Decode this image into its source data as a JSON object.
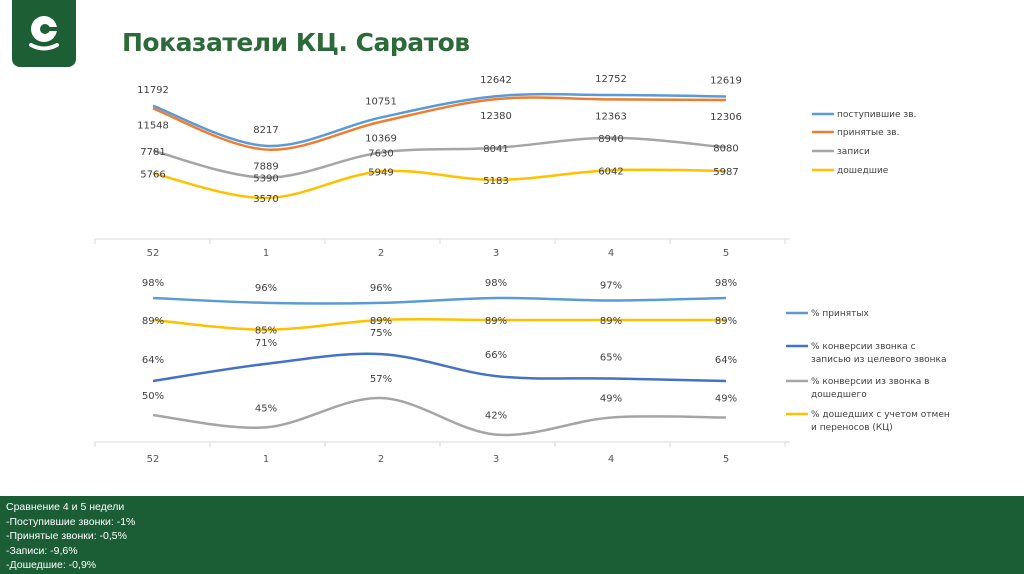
{
  "header": {
    "title": "Показатели КЦ. Саратов",
    "logo_icon": "company-logo-c-icon",
    "brand_color": "#1d5e35"
  },
  "chart_data": [
    {
      "type": "line",
      "categories": [
        "52",
        "1",
        "2",
        "3",
        "4",
        "5"
      ],
      "legend_position": "right",
      "grid": false,
      "series": [
        {
          "name": "поступившие зв.",
          "color": "#5b9bd5",
          "values": [
            11792,
            8217,
            10751,
            12642,
            12752,
            12619
          ]
        },
        {
          "name": "принятые зв.",
          "color": "#ed7d31",
          "values": [
            11548,
            7889,
            10369,
            12380,
            12363,
            12306
          ]
        },
        {
          "name": "записи",
          "color": "#a5a5a5",
          "values": [
            7781,
            5390,
            7630,
            8041,
            8940,
            8080
          ]
        },
        {
          "name": "дошедшие",
          "color": "#ffc000",
          "values": [
            5766,
            3570,
            5949,
            5183,
            6042,
            5987
          ]
        }
      ]
    },
    {
      "type": "line",
      "categories": [
        "52",
        "1",
        "2",
        "3",
        "4",
        "5"
      ],
      "legend_position": "right",
      "grid": false,
      "unit": "%",
      "series": [
        {
          "name": "% принятых",
          "color": "#5b9bd5",
          "values": [
            98,
            96,
            96,
            98,
            97,
            98
          ]
        },
        {
          "name": "% конверсии звонка с записью из целевого звонка",
          "legend_lines": [
            "% конверсии звонка с",
            "записью из целевого звонка"
          ],
          "color": "#4472c4",
          "values": [
            64,
            71,
            75,
            66,
            65,
            64
          ]
        },
        {
          "name": "% конверсии из звонка в дошедшего",
          "legend_lines": [
            "% конверсии из звонка в",
            "дошедшего"
          ],
          "color": "#a5a5a5",
          "values": [
            50,
            45,
            57,
            42,
            49,
            49
          ]
        },
        {
          "name": "% дошедших с учетом отмен и переносов (КЦ)",
          "legend_lines": [
            "% дошедших с учетом отмен",
            "и переносов (КЦ)"
          ],
          "color": "#ffc000",
          "values": [
            89,
            85,
            89,
            89,
            89,
            89
          ]
        }
      ]
    }
  ],
  "footer": {
    "lines": [
      "Сравнение 4 и 5 недели",
      "-Поступившие звонки: -1%",
      "-Принятые звонки:  -0,5%",
      "-Записи: -9,6%",
      "-Дошедшие: -0,9%"
    ]
  }
}
